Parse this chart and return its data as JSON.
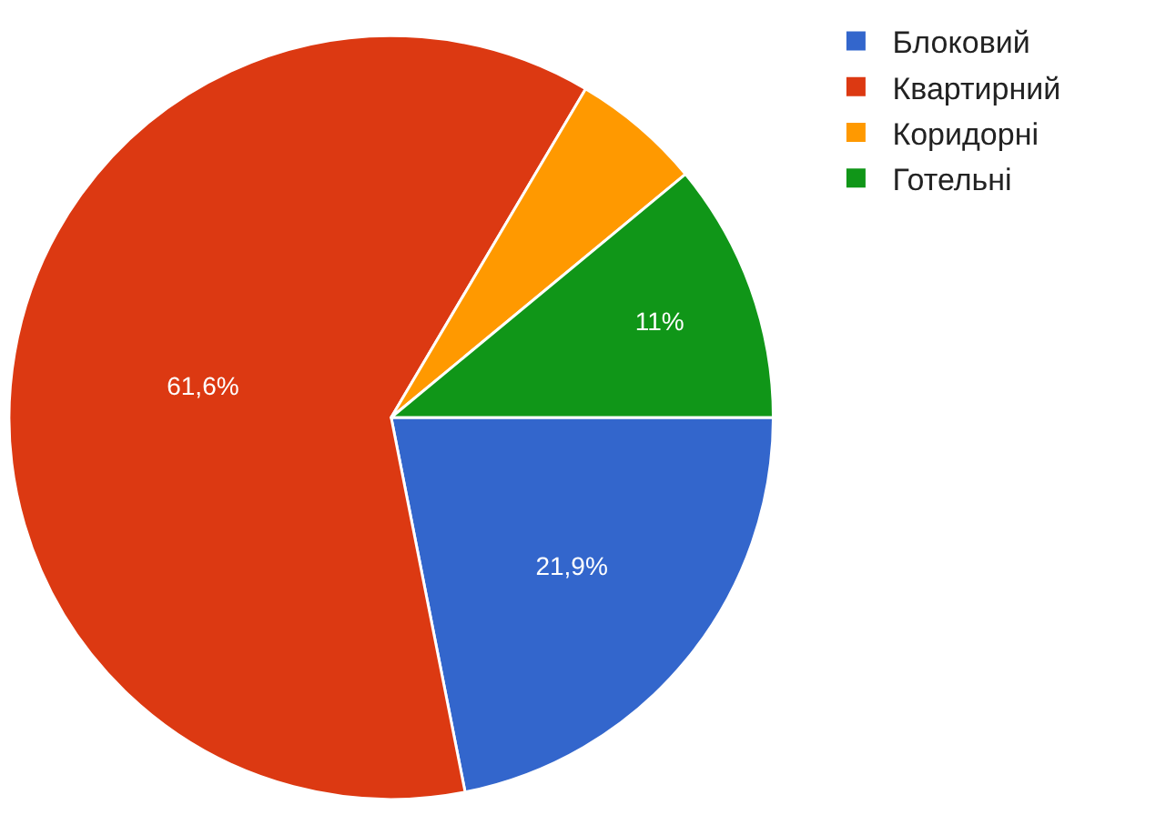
{
  "chart_data": {
    "type": "pie",
    "categories": [
      "Блоковий",
      "Квартирний",
      "Коридорні",
      "Готельні"
    ],
    "values": [
      21.9,
      61.6,
      5.5,
      11
    ],
    "value_labels": [
      "21,9%",
      "61,6%",
      null,
      "11%"
    ],
    "colors": [
      "#3366cc",
      "#dc3912",
      "#ff9900",
      "#109618"
    ],
    "legend": "top right"
  }
}
